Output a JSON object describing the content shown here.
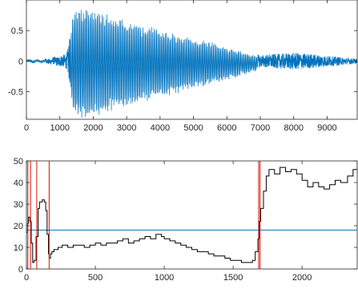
{
  "chart_data": [
    {
      "type": "line",
      "title": "",
      "xlabel": "",
      "ylabel": "",
      "xlim": [
        0,
        9900
      ],
      "ylim": [
        -0.95,
        1.0
      ],
      "xticks": [
        0,
        1000,
        2000,
        3000,
        4000,
        5000,
        6000,
        7000,
        8000,
        9000
      ],
      "xtick_labels": [
        "0",
        "1000",
        "2000",
        "3000",
        "4000",
        "5000",
        "6000",
        "7000",
        "8000",
        "9000"
      ],
      "yticks": [
        0.5,
        0,
        -0.5
      ],
      "ytick_labels": [
        "0.5",
        "0",
        "-0.5"
      ],
      "grid": false,
      "series": [
        {
          "color": "#0072BD",
          "description_points": {
            "x": [
              0,
              200,
              400,
              600,
              800,
              1000,
              1200,
              1300,
              1400,
              1700,
              2000,
              2500,
              3000,
              3500,
              4000,
              4500,
              5000,
              5500,
              6000,
              6500,
              7000,
              7500,
              8000,
              8500,
              9000,
              9500,
              9900
            ],
            "envelope": [
              0.02,
              0.03,
              0.02,
              0.04,
              0.06,
              0.09,
              0.12,
              0.4,
              0.85,
              0.92,
              0.88,
              0.78,
              0.72,
              0.62,
              0.55,
              0.48,
              0.4,
              0.34,
              0.26,
              0.18,
              0.1,
              0.12,
              0.14,
              0.12,
              0.09,
              0.06,
              0.04
            ]
          }
        }
      ]
    },
    {
      "type": "line",
      "title": "",
      "xlabel": "",
      "ylabel": "",
      "xlim": [
        0,
        2400
      ],
      "ylim": [
        0,
        50
      ],
      "xticks": [
        0,
        500,
        1000,
        1500,
        2000
      ],
      "xtick_labels": [
        "0",
        "500",
        "1000",
        "1500",
        "2000"
      ],
      "yticks": [
        0,
        10,
        20,
        30,
        40,
        50
      ],
      "ytick_labels": [
        "0",
        "10",
        "20",
        "30",
        "40",
        "50"
      ],
      "grid": false,
      "series": [
        {
          "color": "#000000",
          "x": [
            0,
            8,
            15,
            25,
            35,
            45,
            55,
            70,
            85,
            95,
            105,
            115,
            130,
            140,
            150,
            160,
            165,
            175,
            185,
            200,
            230,
            260,
            300,
            340,
            380,
            420,
            460,
            500,
            540,
            580,
            620,
            660,
            700,
            740,
            780,
            820,
            860,
            900,
            940,
            980,
            1000,
            1040,
            1080,
            1120,
            1160,
            1200,
            1240,
            1280,
            1320,
            1360,
            1400,
            1440,
            1480,
            1520,
            1560,
            1600,
            1640,
            1660,
            1680,
            1690,
            1700,
            1720,
            1740,
            1760,
            1800,
            1840,
            1880,
            1920,
            1960,
            2000,
            2040,
            2080,
            2120,
            2160,
            2200,
            2240,
            2280,
            2330,
            2370,
            2400
          ],
          "y": [
            17,
            21,
            24,
            22,
            12,
            3,
            4,
            15,
            28,
            31,
            31,
            32,
            31,
            27,
            16,
            7,
            5,
            7,
            8,
            9,
            10,
            11,
            10,
            11,
            11,
            10,
            11,
            12,
            11,
            12,
            12,
            13,
            14,
            12,
            13,
            14,
            15,
            14,
            16,
            15,
            14,
            13,
            12,
            11,
            10,
            9,
            8,
            8,
            7,
            6,
            6,
            5,
            4,
            4,
            3,
            3,
            4,
            8,
            14,
            22,
            28,
            36,
            43,
            46,
            44,
            47,
            45,
            46,
            44,
            41,
            38,
            40,
            38,
            37,
            39,
            41,
            40,
            43,
            46,
            50
          ]
        },
        {
          "color": "#0072BD",
          "x": [
            0,
            2400
          ],
          "y": [
            18,
            18
          ]
        }
      ],
      "vlines": {
        "color": "#D7261E",
        "x": [
          10,
          30,
          75,
          165,
          1685,
          1695
        ]
      }
    }
  ]
}
